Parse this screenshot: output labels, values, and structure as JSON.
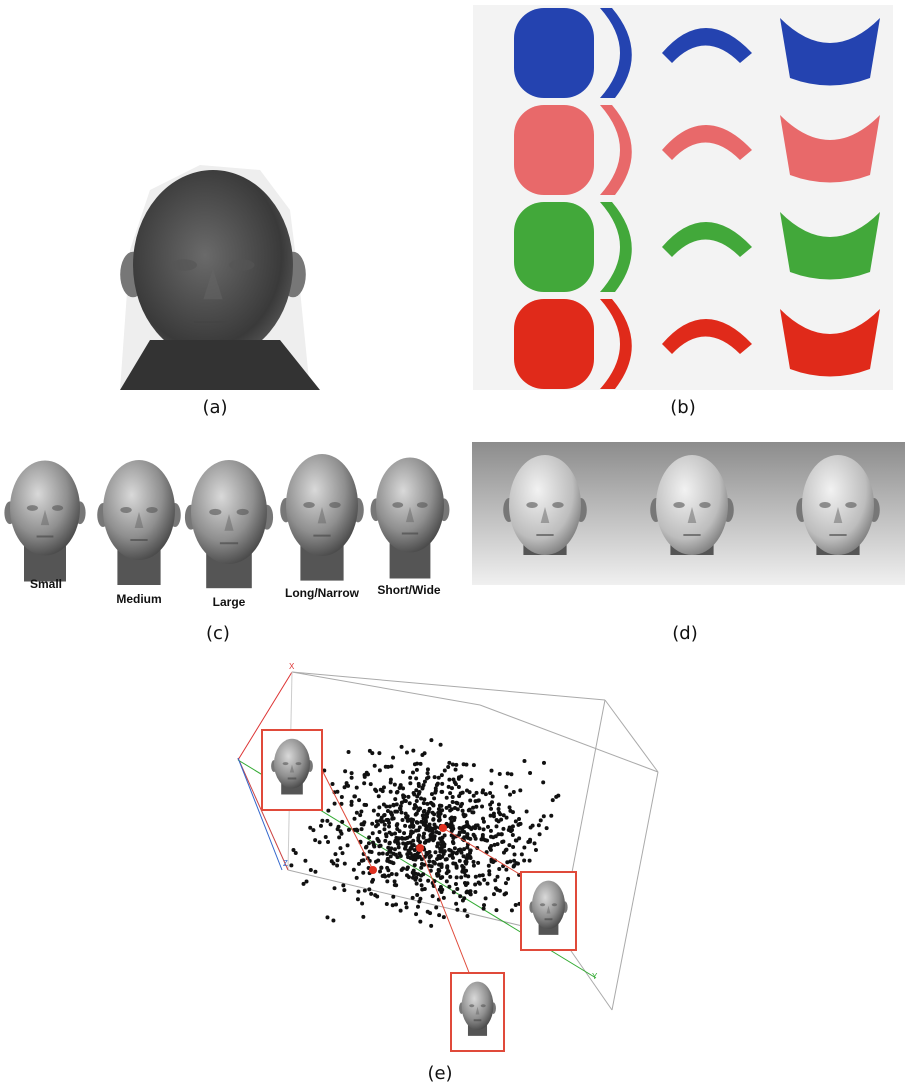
{
  "panels": [
    {
      "label": "(a)"
    },
    {
      "label": "(b)"
    },
    {
      "label": "(c)",
      "captions": [
        "Small",
        "Medium",
        "Large",
        "Long/Narrow",
        "Short/Wide"
      ]
    },
    {
      "label": "(d)"
    },
    {
      "label": "(e)",
      "axes": [
        "X",
        "Z",
        "Y"
      ]
    }
  ]
}
